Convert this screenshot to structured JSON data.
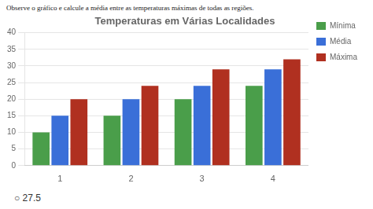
{
  "chart_data": {
    "type": "bar",
    "title": "Temperaturas em Várias Localidades",
    "subtitle": "Observe o gráfico e calcule a média entre as temperaturas máximas de todas as regiões.",
    "annotations": [
      "○  27.5"
    ],
    "categories": [
      "1",
      "2",
      "3",
      "4"
    ],
    "series": [
      {
        "name": "Mínima",
        "color": "#4a9e4a",
        "values": [
          10,
          15,
          20,
          24
        ]
      },
      {
        "name": "Média",
        "color": "#3a6fd8",
        "values": [
          15,
          20,
          24,
          29
        ]
      },
      {
        "name": "Máxima",
        "color": "#b03020",
        "values": [
          20,
          24,
          29,
          32
        ]
      }
    ],
    "ylim": [
      0,
      40
    ],
    "yticks": [
      0,
      5,
      10,
      15,
      20,
      25,
      30,
      35,
      40
    ],
    "grid": true,
    "legend": "right"
  }
}
